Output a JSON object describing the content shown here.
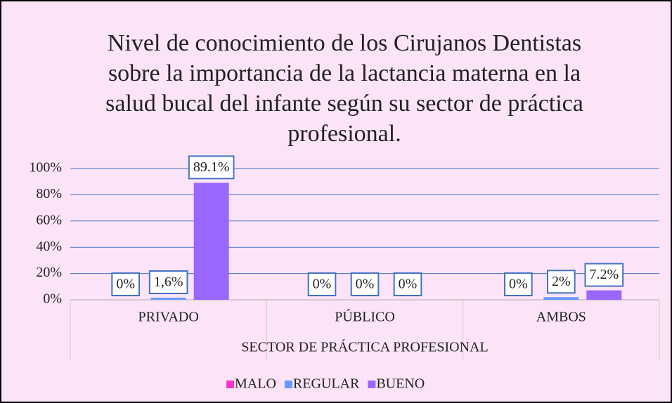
{
  "chart_data": {
    "type": "bar",
    "title": [
      "Nivel de conocimiento de los Cirujanos Dentistas",
      "sobre la importancia de la lactancia materna en la",
      "salud bucal del infante según su sector de práctica",
      "profesional."
    ],
    "x_label": "SECTOR DE PRÁCTICA PROFESIONAL",
    "categories": [
      "PRIVADO",
      "PÚBLICO",
      "AMBOS"
    ],
    "series": [
      {
        "name": "MALO",
        "color": "#ff33cc",
        "values": [
          0,
          0,
          0
        ],
        "value_labels": [
          "0%",
          "0%",
          "0%"
        ]
      },
      {
        "name": "REGULAR",
        "color": "#6699ff",
        "values": [
          1.6,
          0,
          2
        ],
        "value_labels": [
          "1,6%",
          "0%",
          "2%"
        ]
      },
      {
        "name": "BUENO",
        "color": "#9966ff",
        "values": [
          89.1,
          0,
          7.2
        ],
        "value_labels": [
          "89.1%",
          "0%",
          "7.2%"
        ]
      }
    ],
    "ylim": [
      0,
      100
    ],
    "yticks": [
      {
        "value": 0,
        "label": "0%"
      },
      {
        "value": 20,
        "label": "20%"
      },
      {
        "value": 40,
        "label": "40%"
      },
      {
        "value": 60,
        "label": "60%"
      },
      {
        "value": 80,
        "label": "80%"
      },
      {
        "value": 100,
        "label": "100%"
      }
    ],
    "grid": true,
    "legend": "bottom"
  }
}
